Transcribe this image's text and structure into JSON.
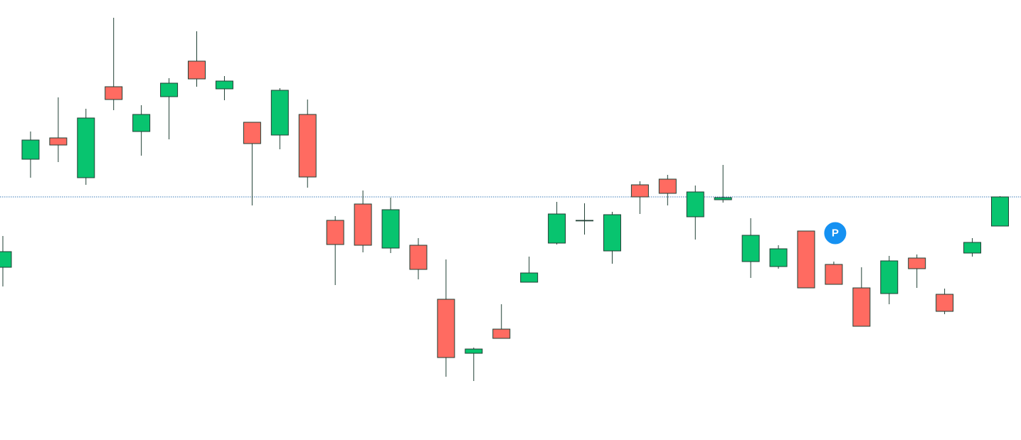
{
  "chart_data": {
    "type": "candlestick",
    "up_color": "#08c46f",
    "down_color": "#ff6b61",
    "wick_color": "#1f3f33",
    "price_line": true,
    "price_line_color": "#3d7db8",
    "ylim": [
      0,
      61.9
    ],
    "marker": {
      "text": "P",
      "color": "#1591f2",
      "index": 30
    },
    "open": [
      24.3,
      39.5,
      42.5,
      36.9,
      49.7,
      43.4,
      48.3,
      53.3,
      49.4,
      44.7,
      42.9,
      45.8,
      30.9,
      33.2,
      27.0,
      27.4,
      19.8,
      12.2,
      15.6,
      22.2,
      27.7,
      30.9,
      26.6,
      35.9,
      36.7,
      31.4,
      33.8,
      25.1,
      24.4,
      29.4,
      24.7,
      21.4,
      20.6,
      25.6,
      20.5,
      26.3,
      30.1
    ],
    "high": [
      28.7,
      43.4,
      48.2,
      46.6,
      59.4,
      47.1,
      50.9,
      57.5,
      51.2,
      44.7,
      49.5,
      47.9,
      31.5,
      35.1,
      34.1,
      28.4,
      25.4,
      13.0,
      19.1,
      25.8,
      33.5,
      33.3,
      32.1,
      36.4,
      37.3,
      35.8,
      38.7,
      31.2,
      27.4,
      29.4,
      25.1,
      24.3,
      25.9,
      26.1,
      21.3,
      28.4,
      34.3
    ],
    "low": [
      21.6,
      36.9,
      39.1,
      35.9,
      46.4,
      40.0,
      42.3,
      49.7,
      47.8,
      33.0,
      40.9,
      35.5,
      21.8,
      26.4,
      26.3,
      22.6,
      8.9,
      8.3,
      14.3,
      22.2,
      27.5,
      28.9,
      24.8,
      31.8,
      33.0,
      28.2,
      33.4,
      22.8,
      24.1,
      21.4,
      21.9,
      16.0,
      19.1,
      21.4,
      17.7,
      25.8,
      30.1
    ],
    "close": [
      26.5,
      42.2,
      41.5,
      45.3,
      47.9,
      45.8,
      50.2,
      50.8,
      50.5,
      41.7,
      49.2,
      37.0,
      27.5,
      27.4,
      32.4,
      24.0,
      11.6,
      12.8,
      14.3,
      23.5,
      31.8,
      30.9,
      31.7,
      34.2,
      34.7,
      34.9,
      34.1,
      28.8,
      26.9,
      21.4,
      21.9,
      16.0,
      25.2,
      24.1,
      18.1,
      27.8,
      34.2
    ]
  }
}
